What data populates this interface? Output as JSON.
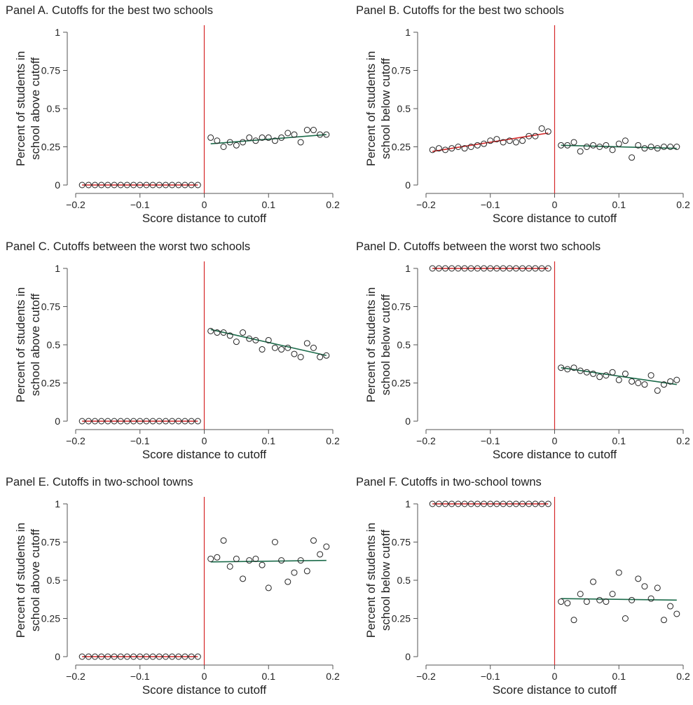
{
  "colors": {
    "cutoff_line": "#d62728",
    "fit_left": "#d62728",
    "fit_right": "#1b6b4a",
    "axis": "#555555",
    "marker": "#222222"
  },
  "chart_data": [
    {
      "id": "A",
      "type": "scatter",
      "title": "Panel A. Cutoffs for the best two schools",
      "xlabel": "Score distance to cutoff",
      "ylabel": [
        "Percent of students in",
        "school above cutoff"
      ],
      "xlim": [
        -0.2,
        0.2
      ],
      "ylim": [
        0,
        1
      ],
      "xticks": [
        -0.2,
        -0.1,
        0,
        0.1,
        0.2
      ],
      "xtick_labels": [
        "−0.2",
        "−0.1",
        "0",
        "0.1",
        "0.2"
      ],
      "yticks": [
        0,
        0.25,
        0.5,
        0.75,
        1
      ],
      "ytick_labels": [
        "0",
        "0.25",
        "0.5",
        "0.75",
        "1"
      ],
      "cutoff": 0,
      "left_points": {
        "x": [
          -0.19,
          -0.18,
          -0.17,
          -0.16,
          -0.15,
          -0.14,
          -0.13,
          -0.12,
          -0.11,
          -0.1,
          -0.09,
          -0.08,
          -0.07,
          -0.06,
          -0.05,
          -0.04,
          -0.03,
          -0.02,
          -0.01
        ],
        "y": [
          0,
          0,
          0,
          0,
          0,
          0,
          0,
          0,
          0,
          0,
          0,
          0,
          0,
          0,
          0,
          0,
          0,
          0,
          0
        ]
      },
      "right_points": {
        "x": [
          0.01,
          0.02,
          0.03,
          0.04,
          0.05,
          0.06,
          0.07,
          0.08,
          0.09,
          0.1,
          0.11,
          0.12,
          0.13,
          0.14,
          0.15,
          0.16,
          0.17,
          0.18,
          0.19
        ],
        "y": [
          0.31,
          0.29,
          0.25,
          0.28,
          0.26,
          0.28,
          0.31,
          0.29,
          0.31,
          0.31,
          0.29,
          0.31,
          0.34,
          0.33,
          0.28,
          0.36,
          0.36,
          0.33,
          0.33
        ]
      },
      "left_fit": {
        "x": [
          -0.19,
          -0.01
        ],
        "y": [
          0,
          0
        ]
      },
      "right_fit": {
        "x": [
          0.01,
          0.19
        ],
        "y": [
          0.27,
          0.33
        ]
      }
    },
    {
      "id": "B",
      "type": "scatter",
      "title": "Panel B. Cutoffs for the best two schools",
      "xlabel": "Score distance to cutoff",
      "ylabel": [
        "Percent of students in",
        "school below cutoff"
      ],
      "xlim": [
        -0.2,
        0.2
      ],
      "ylim": [
        0,
        1
      ],
      "xticks": [
        -0.2,
        -0.1,
        0,
        0.1,
        0.2
      ],
      "xtick_labels": [
        "−0.2",
        "−0.1",
        "0",
        "0.1",
        "0.2"
      ],
      "yticks": [
        0,
        0.25,
        0.5,
        0.75,
        1
      ],
      "ytick_labels": [
        "0",
        "0.25",
        "0.5",
        "0.75",
        "1"
      ],
      "cutoff": 0,
      "left_points": {
        "x": [
          -0.19,
          -0.18,
          -0.17,
          -0.16,
          -0.15,
          -0.14,
          -0.13,
          -0.12,
          -0.11,
          -0.1,
          -0.09,
          -0.08,
          -0.07,
          -0.06,
          -0.05,
          -0.04,
          -0.03,
          -0.02,
          -0.01
        ],
        "y": [
          0.23,
          0.24,
          0.23,
          0.24,
          0.25,
          0.24,
          0.25,
          0.26,
          0.27,
          0.29,
          0.3,
          0.28,
          0.29,
          0.28,
          0.29,
          0.32,
          0.32,
          0.37,
          0.35
        ]
      },
      "right_points": {
        "x": [
          0.01,
          0.02,
          0.03,
          0.04,
          0.05,
          0.06,
          0.07,
          0.08,
          0.09,
          0.1,
          0.11,
          0.12,
          0.13,
          0.14,
          0.15,
          0.16,
          0.17,
          0.18,
          0.19
        ],
        "y": [
          0.26,
          0.26,
          0.28,
          0.22,
          0.25,
          0.26,
          0.25,
          0.26,
          0.23,
          0.27,
          0.29,
          0.18,
          0.26,
          0.24,
          0.25,
          0.24,
          0.25,
          0.25,
          0.25
        ]
      },
      "left_fit": {
        "x": [
          -0.19,
          -0.01
        ],
        "y": [
          0.22,
          0.34
        ]
      },
      "right_fit": {
        "x": [
          0.01,
          0.19
        ],
        "y": [
          0.26,
          0.24
        ]
      }
    },
    {
      "id": "C",
      "type": "scatter",
      "title": "Panel C. Cutoffs between the worst two schools",
      "xlabel": "Score distance to cutoff",
      "ylabel": [
        "Percent of students in",
        "school above cutoff"
      ],
      "xlim": [
        -0.2,
        0.2
      ],
      "ylim": [
        0,
        1
      ],
      "xticks": [
        -0.2,
        -0.1,
        0,
        0.1,
        0.2
      ],
      "xtick_labels": [
        "−0.2",
        "−0.1",
        "0",
        "0.1",
        "0.2"
      ],
      "yticks": [
        0,
        0.25,
        0.5,
        0.75,
        1
      ],
      "ytick_labels": [
        "0",
        "0.25",
        "0.5",
        "0.75",
        "1"
      ],
      "cutoff": 0,
      "left_points": {
        "x": [
          -0.19,
          -0.18,
          -0.17,
          -0.16,
          -0.15,
          -0.14,
          -0.13,
          -0.12,
          -0.11,
          -0.1,
          -0.09,
          -0.08,
          -0.07,
          -0.06,
          -0.05,
          -0.04,
          -0.03,
          -0.02,
          -0.01
        ],
        "y": [
          0,
          0,
          0,
          0,
          0,
          0,
          0,
          0,
          0,
          0,
          0,
          0,
          0,
          0,
          0,
          0,
          0,
          0,
          0
        ]
      },
      "right_points": {
        "x": [
          0.01,
          0.02,
          0.03,
          0.04,
          0.05,
          0.06,
          0.07,
          0.08,
          0.09,
          0.1,
          0.11,
          0.12,
          0.13,
          0.14,
          0.15,
          0.16,
          0.17,
          0.18,
          0.19
        ],
        "y": [
          0.59,
          0.58,
          0.58,
          0.56,
          0.52,
          0.58,
          0.54,
          0.53,
          0.47,
          0.53,
          0.48,
          0.47,
          0.48,
          0.44,
          0.42,
          0.51,
          0.48,
          0.42,
          0.43
        ]
      },
      "left_fit": {
        "x": [
          -0.19,
          -0.01
        ],
        "y": [
          0,
          0
        ]
      },
      "right_fit": {
        "x": [
          0.01,
          0.19
        ],
        "y": [
          0.6,
          0.43
        ]
      }
    },
    {
      "id": "D",
      "type": "scatter",
      "title": "Panel D. Cutoffs between the worst two schools",
      "xlabel": "Score distance to cutoff",
      "ylabel": [
        "Percent of students in",
        "school below cutoff"
      ],
      "xlim": [
        -0.2,
        0.2
      ],
      "ylim": [
        0,
        1
      ],
      "xticks": [
        -0.2,
        -0.1,
        0,
        0.1,
        0.2
      ],
      "xtick_labels": [
        "−0.2",
        "−0.1",
        "0",
        "0.1",
        "0.2"
      ],
      "yticks": [
        0,
        0.25,
        0.5,
        0.75,
        1
      ],
      "ytick_labels": [
        "0",
        "0.25",
        "0.5",
        "0.75",
        "1"
      ],
      "cutoff": 0,
      "left_points": {
        "x": [
          -0.19,
          -0.18,
          -0.17,
          -0.16,
          -0.15,
          -0.14,
          -0.13,
          -0.12,
          -0.11,
          -0.1,
          -0.09,
          -0.08,
          -0.07,
          -0.06,
          -0.05,
          -0.04,
          -0.03,
          -0.02,
          -0.01
        ],
        "y": [
          1,
          1,
          1,
          1,
          1,
          1,
          1,
          1,
          1,
          1,
          1,
          1,
          1,
          1,
          1,
          1,
          1,
          1,
          1
        ]
      },
      "right_points": {
        "x": [
          0.01,
          0.02,
          0.03,
          0.04,
          0.05,
          0.06,
          0.07,
          0.08,
          0.09,
          0.1,
          0.11,
          0.12,
          0.13,
          0.14,
          0.15,
          0.16,
          0.17,
          0.18,
          0.19
        ],
        "y": [
          0.35,
          0.34,
          0.35,
          0.33,
          0.32,
          0.31,
          0.29,
          0.3,
          0.32,
          0.27,
          0.31,
          0.26,
          0.25,
          0.24,
          0.3,
          0.2,
          0.24,
          0.26,
          0.27
        ]
      },
      "left_fit": {
        "x": [
          -0.19,
          -0.01
        ],
        "y": [
          1,
          1
        ]
      },
      "right_fit": {
        "x": [
          0.01,
          0.19
        ],
        "y": [
          0.35,
          0.24
        ]
      }
    },
    {
      "id": "E",
      "type": "scatter",
      "title": "Panel E. Cutoffs in two-school towns",
      "xlabel": "Score distance to cutoff",
      "ylabel": [
        "Percent of students in",
        "school above cutoff"
      ],
      "xlim": [
        -0.2,
        0.2
      ],
      "ylim": [
        0,
        1
      ],
      "xticks": [
        -0.2,
        -0.1,
        0,
        0.1,
        0.2
      ],
      "xtick_labels": [
        "−0.2",
        "−0.1",
        "0",
        "0.1",
        "0.2"
      ],
      "yticks": [
        0,
        0.25,
        0.5,
        0.75,
        1
      ],
      "ytick_labels": [
        "0",
        "0.25",
        "0.5",
        "0.75",
        "1"
      ],
      "cutoff": 0,
      "left_points": {
        "x": [
          -0.19,
          -0.18,
          -0.17,
          -0.16,
          -0.15,
          -0.14,
          -0.13,
          -0.12,
          -0.11,
          -0.1,
          -0.09,
          -0.08,
          -0.07,
          -0.06,
          -0.05,
          -0.04,
          -0.03,
          -0.02,
          -0.01
        ],
        "y": [
          0,
          0,
          0,
          0,
          0,
          0,
          0,
          0,
          0,
          0,
          0,
          0,
          0,
          0,
          0,
          0,
          0,
          0,
          0
        ]
      },
      "right_points": {
        "x": [
          0.01,
          0.02,
          0.03,
          0.04,
          0.05,
          0.06,
          0.07,
          0.08,
          0.09,
          0.1,
          0.11,
          0.12,
          0.13,
          0.14,
          0.15,
          0.16,
          0.17,
          0.18,
          0.19
        ],
        "y": [
          0.64,
          0.65,
          0.76,
          0.59,
          0.64,
          0.51,
          0.63,
          0.64,
          0.6,
          0.45,
          0.75,
          0.63,
          0.49,
          0.55,
          0.63,
          0.56,
          0.76,
          0.67,
          0.72
        ]
      },
      "left_fit": {
        "x": [
          -0.19,
          -0.01
        ],
        "y": [
          0,
          0
        ]
      },
      "right_fit": {
        "x": [
          0.01,
          0.19
        ],
        "y": [
          0.62,
          0.63
        ]
      }
    },
    {
      "id": "F",
      "type": "scatter",
      "title": "Panel F. Cutoffs in two-school towns",
      "xlabel": "Score distance to cutoff",
      "ylabel": [
        "Percent of students in",
        "school below cutoff"
      ],
      "xlim": [
        -0.2,
        0.2
      ],
      "ylim": [
        0,
        1
      ],
      "xticks": [
        -0.2,
        -0.1,
        0,
        0.1,
        0.2
      ],
      "xtick_labels": [
        "−0.2",
        "−0.1",
        "0",
        "0.1",
        "0.2"
      ],
      "yticks": [
        0,
        0.25,
        0.5,
        0.75,
        1
      ],
      "ytick_labels": [
        "0",
        "0.25",
        "0.5",
        "0.75",
        "1"
      ],
      "cutoff": 0,
      "left_points": {
        "x": [
          -0.19,
          -0.18,
          -0.17,
          -0.16,
          -0.15,
          -0.14,
          -0.13,
          -0.12,
          -0.11,
          -0.1,
          -0.09,
          -0.08,
          -0.07,
          -0.06,
          -0.05,
          -0.04,
          -0.03,
          -0.02,
          -0.01
        ],
        "y": [
          1,
          1,
          1,
          1,
          1,
          1,
          1,
          1,
          1,
          1,
          1,
          1,
          1,
          1,
          1,
          1,
          1,
          1,
          1
        ]
      },
      "right_points": {
        "x": [
          0.01,
          0.02,
          0.03,
          0.04,
          0.05,
          0.06,
          0.07,
          0.08,
          0.09,
          0.1,
          0.11,
          0.12,
          0.13,
          0.14,
          0.15,
          0.16,
          0.17,
          0.18,
          0.19
        ],
        "y": [
          0.36,
          0.35,
          0.24,
          0.41,
          0.36,
          0.49,
          0.37,
          0.36,
          0.41,
          0.55,
          0.25,
          0.37,
          0.51,
          0.46,
          0.38,
          0.45,
          0.24,
          0.33,
          0.28
        ]
      },
      "left_fit": {
        "x": [
          -0.19,
          -0.01
        ],
        "y": [
          1,
          1
        ]
      },
      "right_fit": {
        "x": [
          0.01,
          0.19
        ],
        "y": [
          0.38,
          0.37
        ]
      }
    }
  ]
}
